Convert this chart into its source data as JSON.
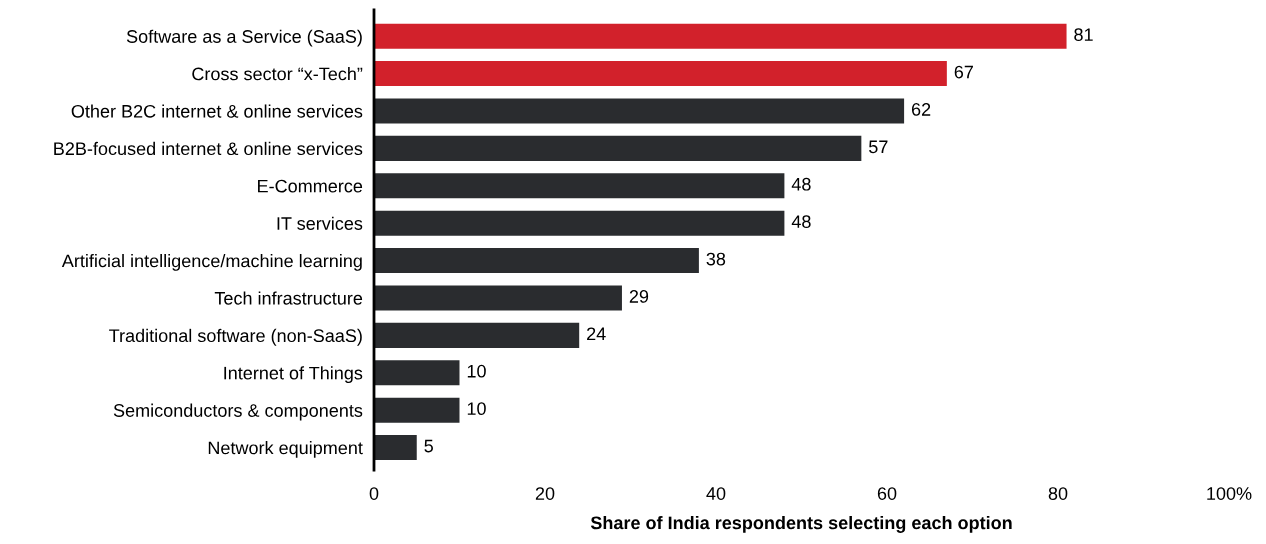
{
  "chart_data": {
    "type": "bar",
    "orientation": "horizontal",
    "xlabel": "Share of India respondents selecting each option",
    "categories": [
      "Software as a Service (SaaS)",
      "Cross sector “x-Tech”",
      "Other B2C internet & online services",
      "B2B-focused internet & online services",
      "E-Commerce",
      "IT services",
      "Artificial intelligence/machine learning",
      "Tech infrastructure",
      "Traditional software (non-SaaS)",
      "Internet of Things",
      "Semiconductors & components",
      "Network equipment"
    ],
    "values": [
      81,
      67,
      62,
      57,
      48,
      48,
      38,
      29,
      24,
      10,
      10,
      5
    ],
    "colors": [
      "#d2212b",
      "#d2212b",
      "#2a2c2f",
      "#2a2c2f",
      "#2a2c2f",
      "#2a2c2f",
      "#2a2c2f",
      "#2a2c2f",
      "#2a2c2f",
      "#2a2c2f",
      "#2a2c2f",
      "#2a2c2f"
    ],
    "xlim": [
      0,
      100
    ],
    "xticks": [
      0,
      20,
      40,
      60,
      80,
      {
        "value": 100,
        "label": "100%"
      }
    ],
    "data_labels": true,
    "grid": false,
    "legend": false
  }
}
